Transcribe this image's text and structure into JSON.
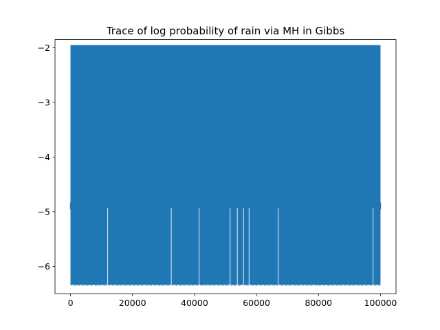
{
  "chart_data": {
    "type": "line",
    "title": "Trace of log probability of rain via MH in Gibbs",
    "xlabel": "",
    "ylabel": "",
    "xlim": [
      -5000,
      105000
    ],
    "ylim": [
      -6.5,
      -1.85
    ],
    "x_ticks": [
      {
        "value": 0,
        "label": "0"
      },
      {
        "value": 20000,
        "label": "20000"
      },
      {
        "value": 40000,
        "label": "40000"
      },
      {
        "value": 60000,
        "label": "60000"
      },
      {
        "value": 80000,
        "label": "80000"
      },
      {
        "value": 100000,
        "label": "100000"
      }
    ],
    "y_ticks": [
      {
        "value": -2,
        "label": "−2"
      },
      {
        "value": -3,
        "label": "−3"
      },
      {
        "value": -4,
        "label": "−4"
      },
      {
        "value": -5,
        "label": "−5"
      },
      {
        "value": -6,
        "label": "−6"
      }
    ],
    "grid": false,
    "series": [
      {
        "color": "#1f77b4",
        "n_samples": 100000,
        "x_range": [
          0,
          100000
        ],
        "upper_level": -1.95,
        "mid_level": -4.93,
        "lower_level": -6.33,
        "lower_band_gaps_at": [
          12000,
          32500,
          41500,
          51500,
          53800,
          55800,
          57600,
          67000,
          97600
        ]
      }
    ]
  }
}
